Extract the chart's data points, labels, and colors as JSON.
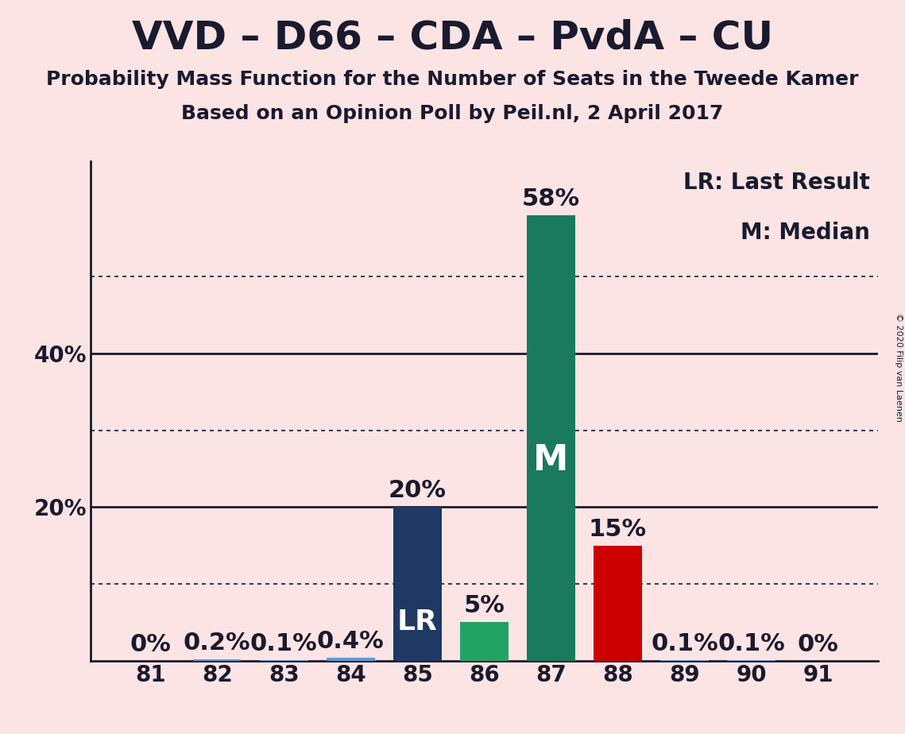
{
  "title": "VVD – D66 – CDA – PvdA – CU",
  "subtitle1": "Probability Mass Function for the Number of Seats in the Tweede Kamer",
  "subtitle2": "Based on an Opinion Poll by Peil.nl, 2 April 2017",
  "copyright": "© 2020 Filip van Laenen",
  "legend_lr": "LR: Last Result",
  "legend_m": "M: Median",
  "background_color": "#fce4e4",
  "categories": [
    81,
    82,
    83,
    84,
    85,
    86,
    87,
    88,
    89,
    90,
    91
  ],
  "values": [
    0.0,
    0.2,
    0.1,
    0.4,
    20.0,
    5.0,
    58.0,
    15.0,
    0.1,
    0.1,
    0.0
  ],
  "bar_colors": [
    "#5b9bd5",
    "#5b9bd5",
    "#5b9bd5",
    "#5b9bd5",
    "#1f3864",
    "#21a366",
    "#1a7a5e",
    "#cc0000",
    "#5b9bd5",
    "#5b9bd5",
    "#5b9bd5"
  ],
  "label_lr": "LR",
  "label_m": "M",
  "lr_index": 4,
  "median_index": 6,
  "ylim": [
    0,
    65
  ],
  "yticks": [
    0,
    10,
    20,
    30,
    40,
    50,
    60
  ],
  "ytick_labels_show": [
    20,
    40
  ],
  "solid_lines": [
    20,
    40
  ],
  "dotted_lines": [
    10,
    30,
    50
  ],
  "title_fontsize": 36,
  "subtitle_fontsize": 18,
  "tick_fontsize": 20,
  "bar_label_fontsize": 22,
  "legend_fontsize": 20,
  "bar_width": 0.72,
  "text_color": "#1a1a2e"
}
